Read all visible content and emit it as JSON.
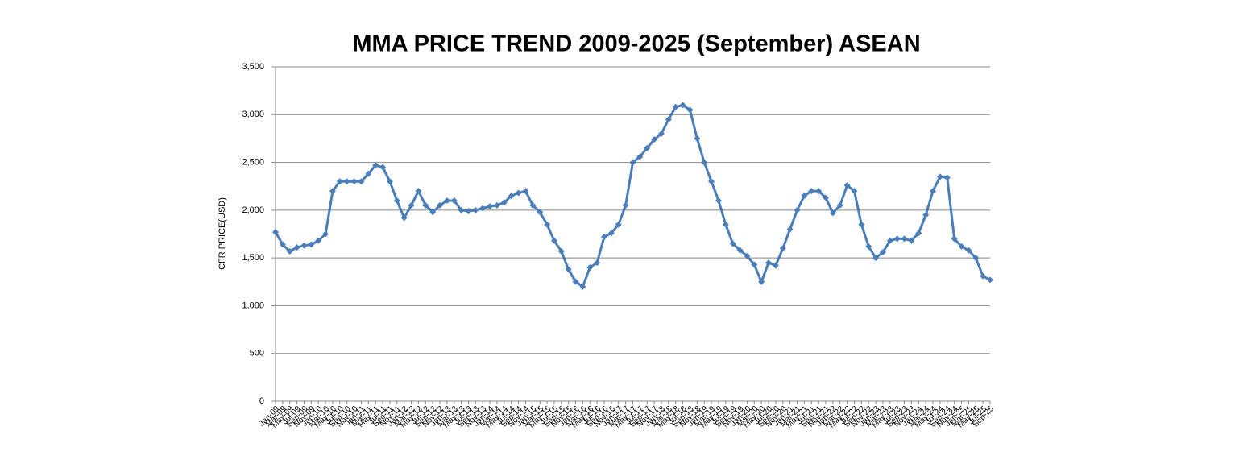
{
  "chart_data": {
    "type": "line",
    "title": "MMA PRICE  TREND 2009-2025 (September)  ASEAN",
    "y_label": "CFR PRICE(USD)",
    "categories": [
      "Jan-09",
      "Mar-09",
      "May-09",
      "Jul-09",
      "Sep-09",
      "Nov-09",
      "Jan-10",
      "Mar-10",
      "May-10",
      "Jul-10",
      "Sep-10",
      "Nov-10",
      "Jan-11",
      "Mar-11",
      "May-11",
      "Jul-11",
      "Sep-11",
      "Nov-11",
      "Jan-12",
      "Mar-12",
      "May-12",
      "Jul-12",
      "Sep-12",
      "Nov-12",
      "Jan-13",
      "Mar-13",
      "May-13",
      "Jul-13",
      "Sep-13",
      "Nov-13",
      "Jan-14",
      "Mar-14",
      "May-14",
      "Jul-14",
      "Sep-14",
      "Nov-14",
      "Jan-15",
      "Mar-15",
      "May-15",
      "Jul-15",
      "Sep-15",
      "Nov-15",
      "Jan-16",
      "Mar-16",
      "May-16",
      "Jul-16",
      "Sep-16",
      "Nov-16",
      "Jan-17",
      "Mar-17",
      "May-17",
      "Jul-17",
      "Sep-17",
      "Nov-17",
      "Jan-18",
      "Mar-18",
      "May-18",
      "Jul-18",
      "Sep-18",
      "Nov-18",
      "Jan-19",
      "Mar-19",
      "May-19",
      "Jul-19",
      "Sep-19",
      "Nov-19",
      "Jan-20",
      "Mar-20",
      "May-20",
      "Jul-20",
      "Sep-20",
      "Nov-20",
      "Jan-21",
      "Mar-21",
      "May-21",
      "Jul-21",
      "Sep-21",
      "Nov-21",
      "Jan-22",
      "Mar-22",
      "May-22",
      "Jul-22",
      "Sep-22",
      "Nov-22",
      "Jan-23",
      "Mar-23",
      "May-23",
      "Jul-23",
      "Sep-23",
      "Nov-23",
      "Jan-24",
      "Mar-24",
      "May-24",
      "Jul-24",
      "Sep-24",
      "Nov-24",
      "Jan-25",
      "Mar-25",
      "May-25",
      "Jul-25",
      "Sep-25"
    ],
    "series": [
      {
        "name": "MMA",
        "color": "#4a7ebb",
        "values": [
          1770,
          1640,
          1570,
          1610,
          1630,
          1640,
          1680,
          1750,
          2200,
          2300,
          2300,
          2300,
          2300,
          2380,
          2470,
          2450,
          2300,
          2100,
          1920,
          2050,
          2200,
          2050,
          1980,
          2050,
          2100,
          2100,
          2000,
          1990,
          2000,
          2020,
          2040,
          2050,
          2080,
          2150,
          2180,
          2200,
          2050,
          1980,
          1850,
          1680,
          1570,
          1380,
          1250,
          1200,
          1400,
          1450,
          1720,
          1760,
          1850,
          2050,
          2500,
          2560,
          2650,
          2740,
          2800,
          2950,
          3080,
          3100,
          3050,
          2750,
          2500,
          2300,
          2100,
          1850,
          1650,
          1580,
          1520,
          1430,
          1250,
          1450,
          1420,
          1600,
          1800,
          2000,
          2150,
          2200,
          2200,
          2130,
          1970,
          2050,
          2260,
          2200,
          1850,
          1620,
          1500,
          1560,
          1680,
          1700,
          1700,
          1680,
          1760,
          1950,
          2200,
          2350,
          2340,
          1700,
          1620,
          1580,
          1500,
          1310,
          1270
        ]
      }
    ],
    "ylim": [
      0,
      3500
    ],
    "yticks": [
      0,
      500,
      {
        "value": 1000,
        "label": "1,000"
      },
      {
        "value": 1500,
        "label": "1,500"
      },
      {
        "value": 2000,
        "label": "2,000"
      },
      {
        "value": 2500,
        "label": "2,500"
      },
      {
        "value": 3000,
        "label": "3,000"
      },
      {
        "value": 3500,
        "label": "3,500"
      }
    ],
    "grid": true
  }
}
